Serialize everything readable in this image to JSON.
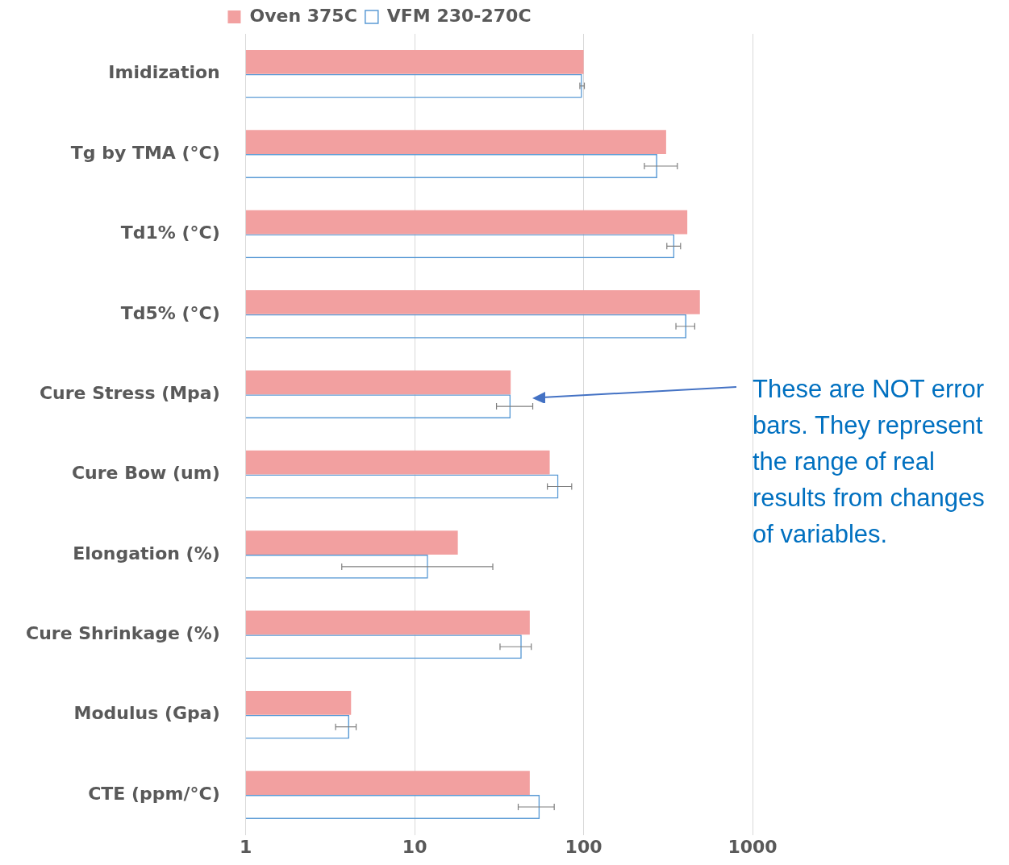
{
  "chart_data": {
    "type": "bar",
    "orientation": "horizontal",
    "log": "x",
    "categories": [
      "Imidization",
      "Tg by TMA (°C)",
      "Td1% (°C)",
      "Td5% (°C)",
      "Cure Stress (Mpa)",
      "Cure Bow (um)",
      "Elongation (%)",
      "Cure Shrinkage (%)",
      "Modulus (Gpa)",
      "CTE (ppm/°C)"
    ],
    "series": [
      {
        "name": "Oven 375C",
        "color": "#f2a0a0",
        "values": [
          100,
          308,
          411,
          488,
          37,
          63,
          18,
          48,
          4.2,
          48
        ]
      },
      {
        "name": "VFM 230-270C",
        "color": "#5b9bd5",
        "values": [
          98,
          273,
          345,
          406,
          37,
          71,
          12,
          43,
          4.1,
          55
        ],
        "errors": [
          [
            95,
            101
          ],
          [
            229,
            359
          ],
          [
            311,
            375
          ],
          [
            352,
            455
          ],
          [
            30.5,
            50
          ],
          [
            61,
            85
          ],
          [
            3.7,
            29
          ],
          [
            32,
            49
          ],
          [
            3.4,
            4.5
          ],
          [
            41,
            67
          ]
        ]
      }
    ],
    "xlim": [
      1,
      1000
    ],
    "xticks": [
      1,
      10,
      100,
      1000
    ],
    "grid": "x",
    "legend": "top",
    "annotations": [
      "These are NOT error bars. They represent the range of real results from changes of variables."
    ]
  }
}
